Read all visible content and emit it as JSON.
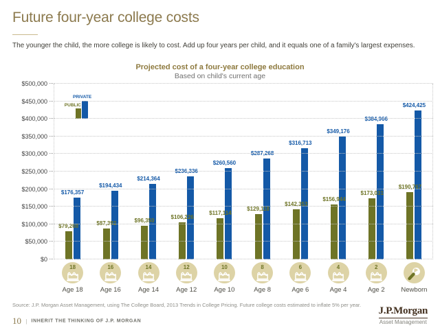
{
  "page": {
    "title": "Future four-year college costs",
    "intro": "The younger the child, the more college is likely to cost. Add up four years per child, and it equals one of a family's largest expenses.",
    "source": "Source: J.P. Morgan Asset Management, using The College Board, 2013 Trends in College Pricing. Future college costs estimated to inflate 5% per year.",
    "footer": {
      "page_number": "10",
      "divider": "|",
      "tagline": "INHERIT THE THINKING OF J.P. MORGAN",
      "logo_main": "J.P.Morgan",
      "logo_sub": "Asset Management"
    }
  },
  "theme": {
    "title_color": "#8c7a4e",
    "public_color": "#6e7426",
    "private_color": "#1459a7",
    "icon_circle_color": "#ddd3a6",
    "grid_color": "#c6c6c6",
    "logo_color": "#43301f"
  },
  "chart_data": {
    "type": "bar",
    "title": "Projected cost of a four-year college education",
    "subtitle": "Based on child's current age",
    "categories": [
      "Age 18",
      "Age 16",
      "Age 14",
      "Age 12",
      "Age 10",
      "Age 8",
      "Age 6",
      "Age 4",
      "Age 2",
      "Newborn"
    ],
    "category_badge_numbers": [
      "18",
      "16",
      "14",
      "12",
      "10",
      "8",
      "6",
      "4",
      "2",
      ""
    ],
    "category_icons": [
      "birthday-cake-icon",
      "birthday-cake-icon",
      "birthday-cake-icon",
      "birthday-cake-icon",
      "birthday-cake-icon",
      "birthday-cake-icon",
      "birthday-cake-icon",
      "birthday-cake-icon",
      "birthday-cake-icon",
      "rattle-icon"
    ],
    "series": [
      {
        "name": "PUBLIC",
        "color": "#6e7426",
        "values": [
          79268,
          87392,
          96350,
          106226,
          117114,
          129118,
          142353,
          156944,
          173031,
          190767
        ]
      },
      {
        "name": "PRIVATE",
        "color": "#1459a7",
        "values": [
          176357,
          194434,
          214364,
          236336,
          260560,
          287268,
          316713,
          349176,
          384966,
          424425
        ]
      }
    ],
    "ylim": [
      0,
      500000
    ],
    "ytick_step": 50000,
    "ytick_labels": [
      "$0",
      "$50,000",
      "$100,000",
      "$150,000",
      "$200,000",
      "$250,000",
      "$300,000",
      "$350,000",
      "$400,000",
      "$450,000",
      "$500,000"
    ],
    "grid": "dotted-horizontal",
    "legend_position": "inside-top-left"
  }
}
